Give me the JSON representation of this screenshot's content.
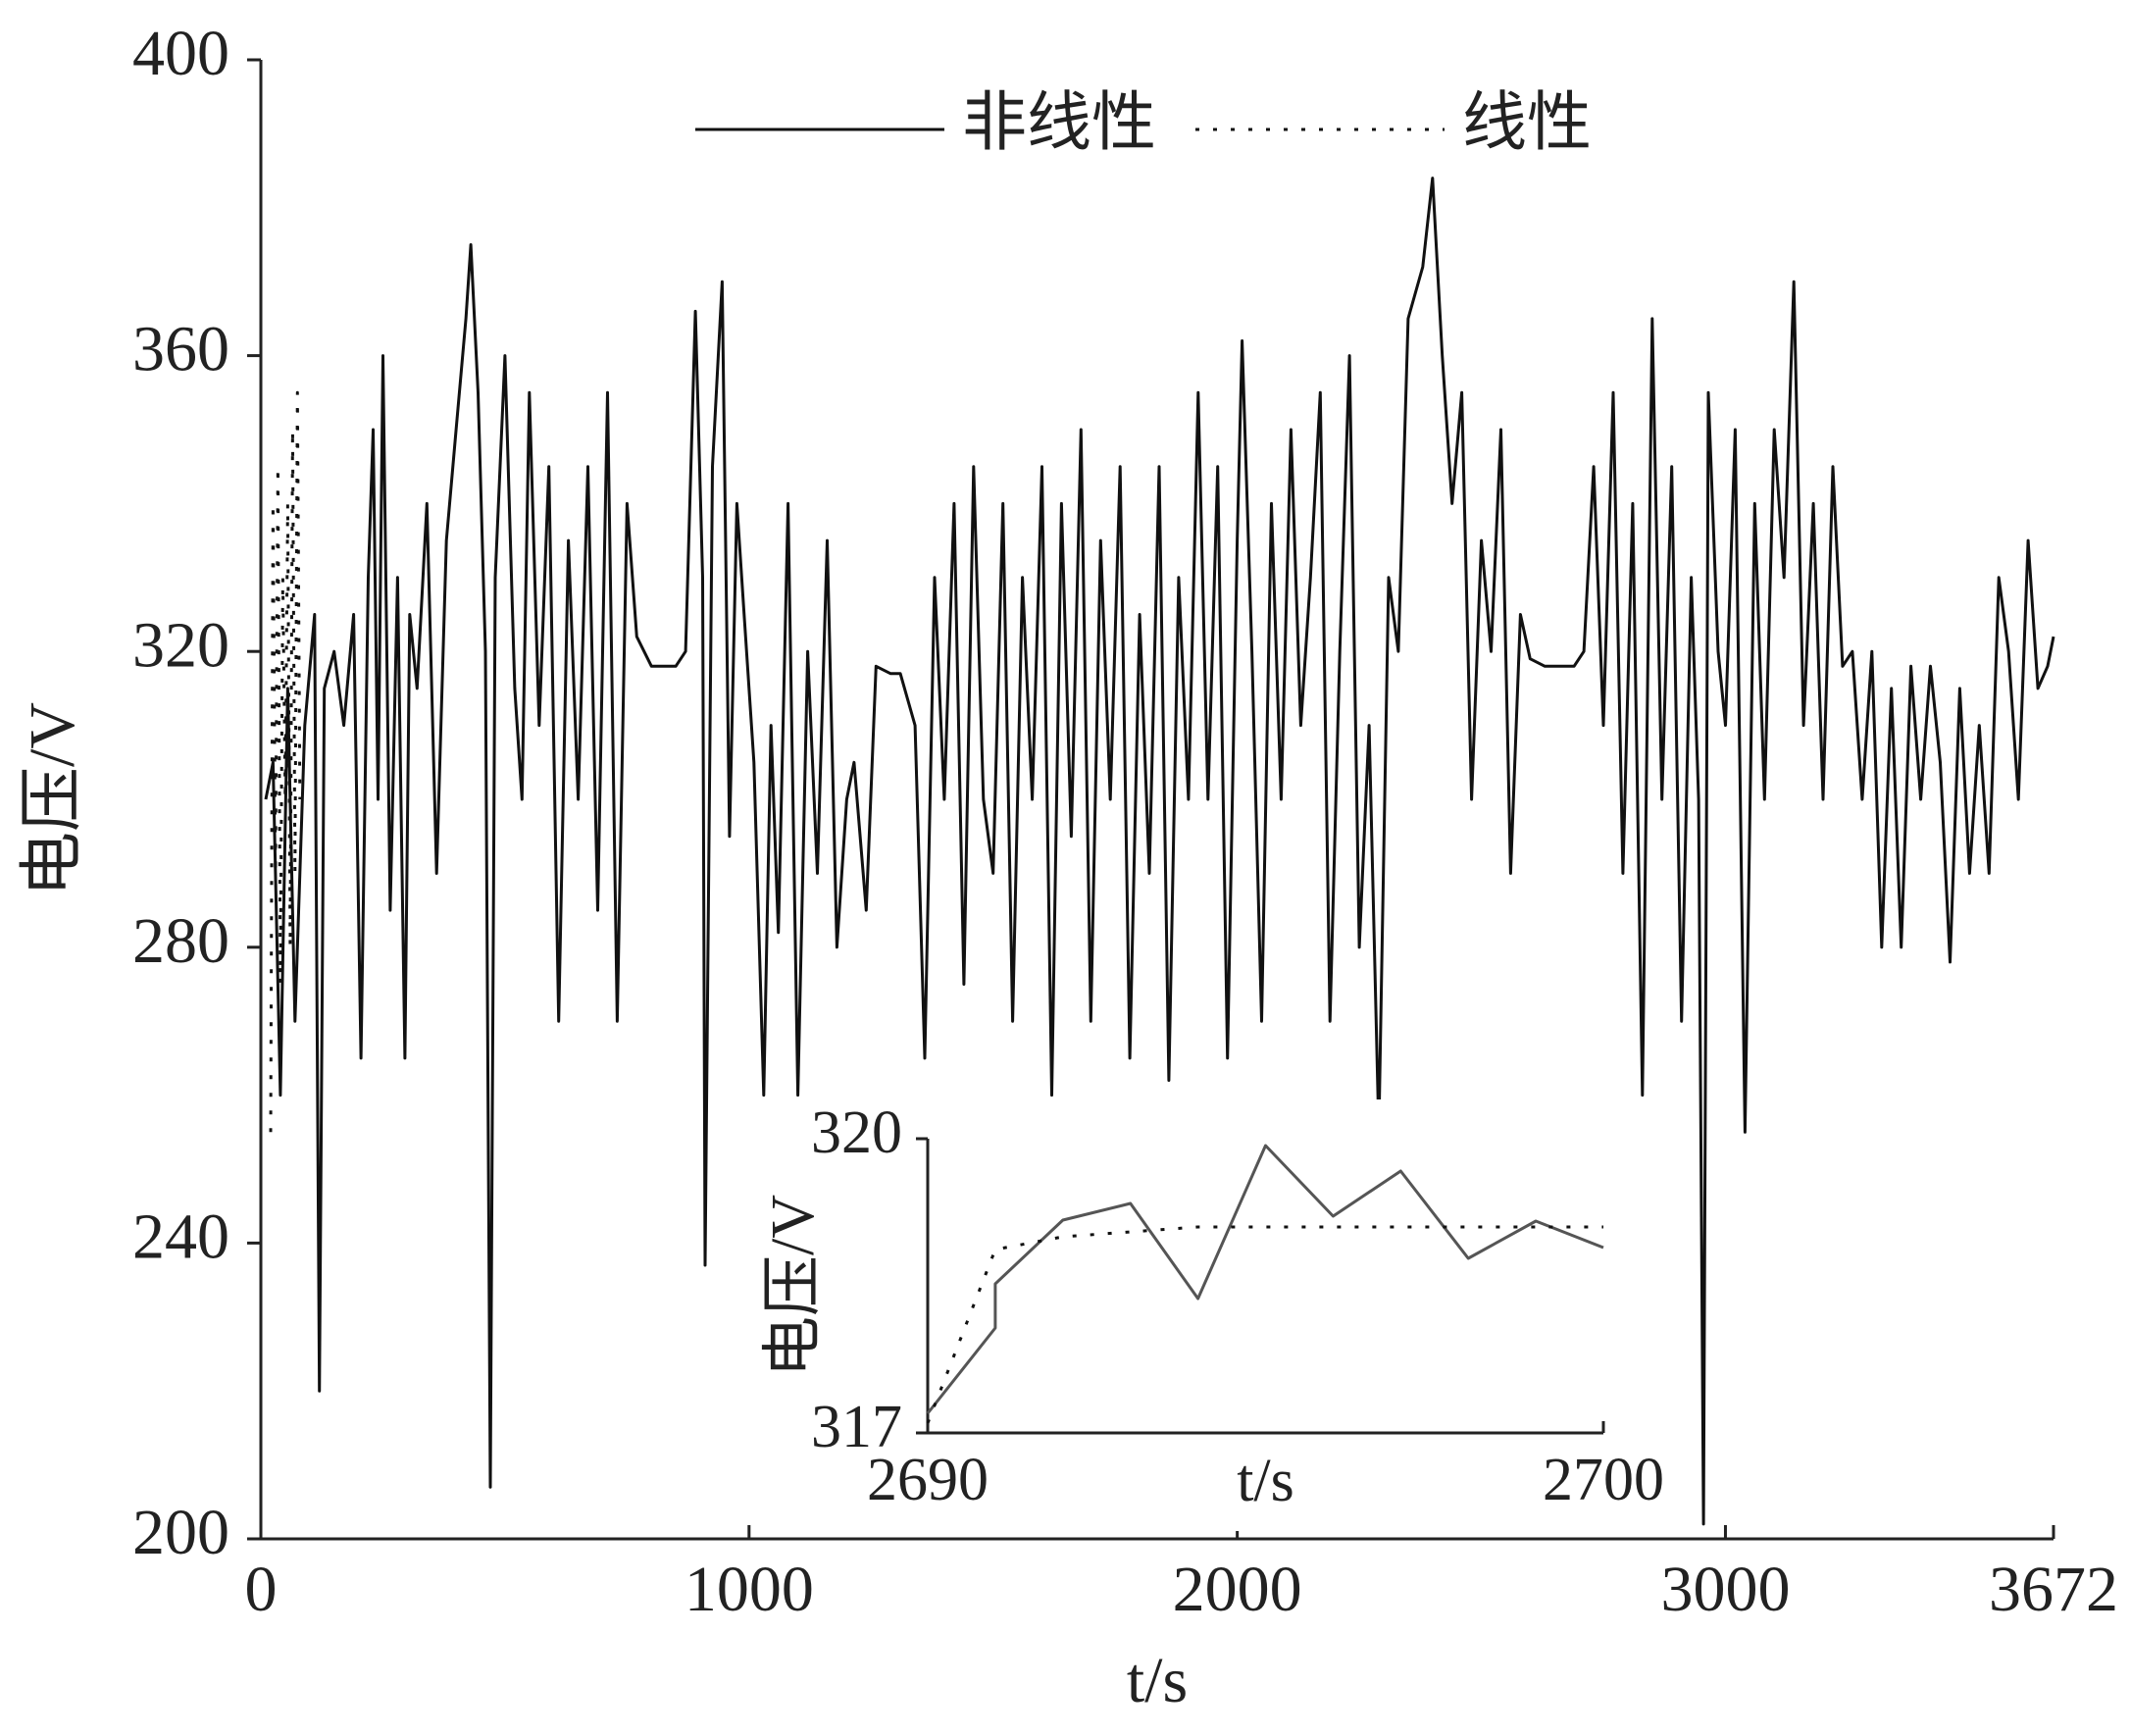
{
  "chart_data": [
    {
      "type": "line",
      "x_label": "t/s",
      "y_label": "电压/V",
      "xlim": [
        0,
        3672
      ],
      "xticks": [
        0,
        1000,
        2000,
        3000,
        3672
      ],
      "ylim": [
        200,
        400
      ],
      "yticks": [
        200,
        240,
        280,
        320,
        360,
        400
      ],
      "grid": false,
      "legend": "top",
      "series": [
        {
          "name": "非线性",
          "color": "#111111",
          "line_style": "solid",
          "x": [
            10,
            25,
            40,
            55,
            70,
            90,
            110,
            120,
            130,
            150,
            170,
            190,
            205,
            220,
            230,
            240,
            250,
            265,
            280,
            295,
            305,
            320,
            340,
            360,
            380,
            400,
            420,
            430,
            445,
            460,
            470,
            480,
            500,
            520,
            535,
            550,
            570,
            590,
            610,
            630,
            650,
            670,
            690,
            710,
            730,
            750,
            770,
            800,
            830,
            850,
            870,
            890,
            905,
            910,
            925,
            945,
            960,
            975,
            990,
            1010,
            1030,
            1045,
            1060,
            1080,
            1100,
            1120,
            1140,
            1160,
            1180,
            1200,
            1215,
            1240,
            1260,
            1290,
            1310,
            1340,
            1360,
            1380,
            1400,
            1420,
            1440,
            1460,
            1480,
            1500,
            1520,
            1540,
            1560,
            1580,
            1600,
            1620,
            1640,
            1660,
            1680,
            1700,
            1720,
            1740,
            1760,
            1780,
            1800,
            1820,
            1840,
            1860,
            1880,
            1900,
            1920,
            1940,
            1960,
            1980,
            2000,
            2010,
            2030,
            2050,
            2070,
            2090,
            2110,
            2130,
            2150,
            2170,
            2190,
            2210,
            2230,
            2250,
            2270,
            2290,
            2310,
            2330,
            2350,
            2380,
            2400,
            2420,
            2440,
            2460,
            2480,
            2500,
            2520,
            2540,
            2560,
            2580,
            2600,
            2630,
            2660,
            2690,
            2710,
            2730,
            2750,
            2770,
            2790,
            2810,
            2830,
            2850,
            2870,
            2890,
            2910,
            2930,
            2945,
            2955,
            2965,
            2985,
            3000,
            3020,
            3040,
            3060,
            3080,
            3100,
            3120,
            3140,
            3160,
            3180,
            3200,
            3220,
            3240,
            3260,
            3280,
            3300,
            3320,
            3340,
            3360,
            3380,
            3400,
            3420,
            3440,
            3460,
            3480,
            3500,
            3520,
            3540,
            3560,
            3580,
            3600,
            3620,
            3640,
            3660,
            3672
          ],
          "values": [
            300,
            305,
            260,
            315,
            270,
            310,
            325,
            220,
            315,
            320,
            310,
            325,
            265,
            330,
            350,
            300,
            360,
            285,
            330,
            265,
            325,
            315,
            340,
            290,
            335,
            350,
            365,
            375,
            355,
            320,
            207,
            330,
            360,
            315,
            300,
            355,
            310,
            345,
            270,
            335,
            300,
            345,
            285,
            355,
            270,
            340,
            322,
            318,
            318,
            318,
            320,
            366,
            330,
            237,
            345,
            370,
            295,
            340,
            325,
            305,
            260,
            310,
            282,
            340,
            260,
            320,
            290,
            335,
            280,
            300,
            305,
            285,
            318,
            317,
            317,
            310,
            265,
            330,
            300,
            340,
            275,
            345,
            300,
            290,
            340,
            270,
            330,
            300,
            345,
            260,
            340,
            295,
            350,
            270,
            335,
            300,
            345,
            265,
            325,
            290,
            345,
            262,
            330,
            300,
            355,
            300,
            345,
            265,
            335,
            362,
            320,
            270,
            340,
            300,
            350,
            310,
            330,
            355,
            270,
            320,
            360,
            280,
            310,
            255,
            330,
            320,
            365,
            372,
            384,
            360,
            340,
            355,
            300,
            335,
            320,
            350,
            290,
            325,
            319,
            318,
            318,
            318,
            320,
            345,
            310,
            355,
            290,
            340,
            260,
            365,
            300,
            345,
            270,
            330,
            300,
            202,
            355,
            320,
            310,
            350,
            255,
            340,
            300,
            350,
            330,
            370,
            310,
            340,
            300,
            345,
            318,
            320,
            300,
            320,
            280,
            315,
            280,
            318,
            300,
            318,
            305,
            278,
            315,
            290,
            310,
            290,
            330,
            320,
            300,
            335,
            315,
            318,
            322
          ]
        },
        {
          "name": "线性",
          "color": "#111111",
          "line_style": "dotted",
          "x": [
            20,
            25,
            30,
            35,
            40,
            45,
            50,
            55,
            60,
            65,
            70,
            75,
            80
          ],
          "values": [
            255,
            340,
            290,
            345,
            275,
            330,
            300,
            340,
            280,
            350,
            290,
            355,
            300
          ]
        }
      ]
    },
    {
      "type": "line",
      "x_label": "t/s",
      "y_label": "电压/V",
      "xlim": [
        2690,
        2700
      ],
      "xticks": [
        2690,
        2700
      ],
      "ylim": [
        317,
        320
      ],
      "yticks": [
        317,
        320
      ],
      "series": [
        {
          "name": "非线性",
          "color": "#555555",
          "line_style": "solid",
          "x": [
            2690,
            2691,
            2691,
            2692,
            2693,
            2694,
            2695,
            2696,
            2697,
            2698,
            2699,
            2700
          ],
          "values": [
            317.2,
            318.07,
            318.52,
            319.17,
            319.34,
            318.37,
            319.93,
            319.21,
            319.67,
            318.78,
            319.16,
            318.89
          ]
        },
        {
          "name": "线性",
          "color": "#111111",
          "line_style": "dotted",
          "x": [
            2690,
            2691,
            2692,
            2693,
            2694,
            2695,
            2696,
            2697,
            2698,
            2699,
            2700
          ],
          "values": [
            317.1,
            318.87,
            319.0,
            319.05,
            319.1,
            319.1,
            319.1,
            319.1,
            319.1,
            319.1,
            319.1
          ]
        }
      ]
    }
  ]
}
